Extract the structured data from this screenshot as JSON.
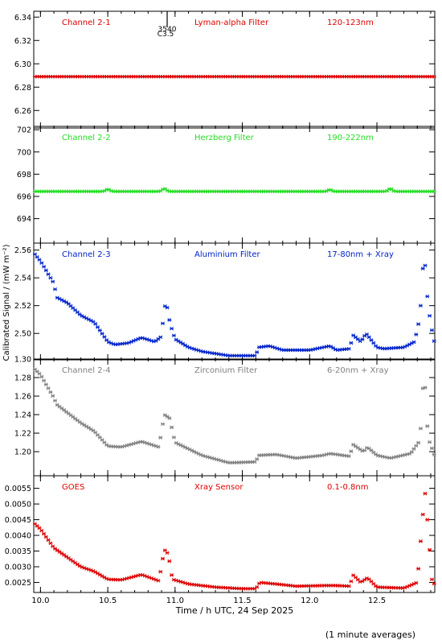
{
  "figure": {
    "ylabel": "Calibrated Signal / (mW m⁻²)",
    "xlabel": "Time / h UTC, 24 Sep 2025",
    "footnote": "(1 minute averages)",
    "flare_marker": {
      "time": 10.92,
      "id": "3540",
      "class": "C3.5"
    },
    "x_ticks": [
      "10.0",
      "10.5",
      "11.0",
      "11.5",
      "12.0",
      "12.5"
    ]
  },
  "chart_data": [
    {
      "type": "scatter",
      "color": "#dd0000",
      "labels": {
        "channel": "Channel 2-1",
        "filter": "Lyman-alpha Filter",
        "band": "120-123nm"
      },
      "xlim": [
        9.95,
        12.93
      ],
      "ylim": [
        6.245,
        6.345
      ],
      "y_ticks": [
        6.26,
        6.28,
        6.3,
        6.32,
        6.34
      ],
      "y_tick_labels": [
        "6.26",
        "6.28",
        "6.30",
        "6.32",
        "6.34"
      ],
      "keypoints": [
        [
          9.95,
          6.289
        ],
        [
          12.93,
          6.289
        ]
      ],
      "bumps": []
    },
    {
      "type": "scatter",
      "color": "#22dd22",
      "labels": {
        "channel": "Channel 2-2",
        "filter": "Herzberg Filter",
        "band": "190-222nm"
      },
      "xlim": [
        9.95,
        12.93
      ],
      "ylim": [
        691.8,
        702.3
      ],
      "y_ticks": [
        694,
        696,
        698,
        700,
        702
      ],
      "y_tick_labels": [
        "694",
        "696",
        "698",
        "700",
        "702"
      ],
      "keypoints": [
        [
          9.95,
          696.45
        ],
        [
          12.93,
          696.45
        ]
      ],
      "bumps": [
        [
          10.5,
          0.2
        ],
        [
          10.92,
          0.25
        ],
        [
          12.15,
          0.15
        ],
        [
          12.6,
          0.25
        ]
      ]
    },
    {
      "type": "scatter",
      "color": "#0022cc",
      "labels": {
        "channel": "Channel 2-3",
        "filter": "Aluminium Filter",
        "band": "17-80nm + Xray"
      },
      "xlim": [
        9.95,
        12.93
      ],
      "ylim": [
        2.481,
        2.565
      ],
      "y_ticks": [
        2.5,
        2.52,
        2.54,
        2.56
      ],
      "y_tick_labels": [
        "2.50",
        "2.52",
        "2.54",
        "2.56"
      ],
      "keypoints": [
        [
          9.95,
          2.558
        ],
        [
          10.0,
          2.552
        ],
        [
          10.1,
          2.536
        ],
        [
          10.12,
          2.526
        ],
        [
          10.2,
          2.522
        ],
        [
          10.3,
          2.513
        ],
        [
          10.4,
          2.508
        ],
        [
          10.5,
          2.494
        ],
        [
          10.55,
          2.492
        ],
        [
          10.65,
          2.493
        ],
        [
          10.75,
          2.497
        ],
        [
          10.85,
          2.494
        ],
        [
          10.9,
          2.498
        ],
        [
          10.92,
          2.52
        ],
        [
          10.95,
          2.518
        ],
        [
          10.96,
          2.508
        ],
        [
          11.0,
          2.496
        ],
        [
          11.1,
          2.49
        ],
        [
          11.2,
          2.487
        ],
        [
          11.4,
          2.484
        ],
        [
          11.6,
          2.484
        ],
        [
          11.62,
          2.49
        ],
        [
          11.7,
          2.491
        ],
        [
          11.8,
          2.488
        ],
        [
          12.0,
          2.488
        ],
        [
          12.15,
          2.491
        ],
        [
          12.2,
          2.488
        ],
        [
          12.3,
          2.489
        ],
        [
          12.32,
          2.499
        ],
        [
          12.38,
          2.494
        ],
        [
          12.42,
          2.5
        ],
        [
          12.5,
          2.49
        ],
        [
          12.55,
          2.489
        ],
        [
          12.7,
          2.49
        ],
        [
          12.78,
          2.494
        ],
        [
          12.82,
          2.512
        ],
        [
          12.85,
          2.56
        ],
        [
          12.88,
          2.52
        ],
        [
          12.92,
          2.495
        ],
        [
          12.93,
          2.494
        ]
      ],
      "bumps": []
    },
    {
      "type": "scatter",
      "color": "#808080",
      "labels": {
        "channel": "Channel 2-4",
        "filter": "Zirconium Filter",
        "band": "6-20nm + Xray"
      },
      "xlim": [
        9.95,
        12.93
      ],
      "ylim": [
        1.174,
        1.3
      ],
      "y_ticks": [
        1.2,
        1.22,
        1.24,
        1.26,
        1.28,
        1.3
      ],
      "y_tick_labels": [
        "1.20",
        "1.22",
        "1.24",
        "1.26",
        "1.28",
        "1.30"
      ],
      "keypoints": [
        [
          9.95,
          1.29
        ],
        [
          10.0,
          1.283
        ],
        [
          10.1,
          1.258
        ],
        [
          10.12,
          1.251
        ],
        [
          10.3,
          1.231
        ],
        [
          10.4,
          1.222
        ],
        [
          10.5,
          1.206
        ],
        [
          10.6,
          1.205
        ],
        [
          10.75,
          1.211
        ],
        [
          10.88,
          1.205
        ],
        [
          10.92,
          1.24
        ],
        [
          10.96,
          1.236
        ],
        [
          11.0,
          1.21
        ],
        [
          11.2,
          1.196
        ],
        [
          11.4,
          1.188
        ],
        [
          11.6,
          1.189
        ],
        [
          11.62,
          1.196
        ],
        [
          11.75,
          1.197
        ],
        [
          11.9,
          1.193
        ],
        [
          12.1,
          1.196
        ],
        [
          12.15,
          1.198
        ],
        [
          12.3,
          1.195
        ],
        [
          12.32,
          1.208
        ],
        [
          12.4,
          1.2
        ],
        [
          12.43,
          1.205
        ],
        [
          12.5,
          1.196
        ],
        [
          12.6,
          1.193
        ],
        [
          12.75,
          1.198
        ],
        [
          12.82,
          1.212
        ],
        [
          12.85,
          1.29
        ],
        [
          12.88,
          1.215
        ],
        [
          12.93,
          1.195
        ]
      ],
      "bumps": []
    },
    {
      "type": "scatter",
      "color": "#dd0000",
      "labels": {
        "channel": "GOES",
        "filter": "Xray Sensor",
        "band": "0.1-0.8nm"
      },
      "xlim": [
        9.95,
        12.93
      ],
      "ylim": [
        0.00218,
        0.0059
      ],
      "y_ticks": [
        0.0025,
        0.003,
        0.0035,
        0.004,
        0.0045,
        0.005,
        0.0055
      ],
      "y_tick_labels": [
        "0.0025",
        "0.0030",
        "0.0035",
        "0.0040",
        "0.0045",
        "0.0050",
        "0.0055"
      ],
      "keypoints": [
        [
          9.95,
          0.0044
        ],
        [
          10.0,
          0.0042
        ],
        [
          10.1,
          0.0036
        ],
        [
          10.2,
          0.0033
        ],
        [
          10.3,
          0.003
        ],
        [
          10.4,
          0.00285
        ],
        [
          10.5,
          0.0026
        ],
        [
          10.6,
          0.00258
        ],
        [
          10.75,
          0.00275
        ],
        [
          10.88,
          0.00255
        ],
        [
          10.92,
          0.00355
        ],
        [
          10.95,
          0.0034
        ],
        [
          10.98,
          0.0026
        ],
        [
          11.1,
          0.00245
        ],
        [
          11.3,
          0.00235
        ],
        [
          11.5,
          0.0023
        ],
        [
          11.6,
          0.0023
        ],
        [
          11.63,
          0.0025
        ],
        [
          11.75,
          0.00245
        ],
        [
          11.9,
          0.00238
        ],
        [
          12.1,
          0.0024
        ],
        [
          12.2,
          0.0024
        ],
        [
          12.3,
          0.00238
        ],
        [
          12.32,
          0.00275
        ],
        [
          12.38,
          0.0025
        ],
        [
          12.43,
          0.00265
        ],
        [
          12.5,
          0.00235
        ],
        [
          12.7,
          0.00232
        ],
        [
          12.8,
          0.0025
        ],
        [
          12.84,
          0.0046
        ],
        [
          12.86,
          0.0054
        ],
        [
          12.88,
          0.0042
        ],
        [
          12.91,
          0.0025
        ],
        [
          12.93,
          0.00245
        ]
      ],
      "bumps": []
    }
  ]
}
